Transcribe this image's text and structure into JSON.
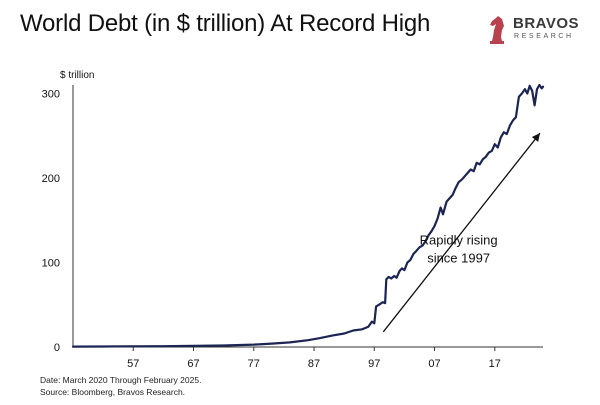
{
  "title": "World Debt (in $ trillion) At Record High",
  "logo": {
    "name": "BRAVOS",
    "tagline": "RESEARCH",
    "color": "#b8434f"
  },
  "footnotes": [
    "Date: March 2020 Through February 2025.",
    "Source: Bloomberg, Bravos Research."
  ],
  "chart_data": {
    "type": "line",
    "title": "World Debt (in $ trillion) At Record High",
    "xlabel": "",
    "ylabel": "$ trillion",
    "xlim": [
      1947,
      2025
    ],
    "ylim": [
      0,
      310
    ],
    "x_ticks": [
      1957,
      1967,
      1977,
      1987,
      1997,
      2007,
      2017
    ],
    "x_tick_labels": [
      "57",
      "67",
      "77",
      "87",
      "97",
      "07",
      "17"
    ],
    "y_ticks": [
      0,
      100,
      200,
      300
    ],
    "y_tick_labels": [
      "0",
      "100",
      "200",
      "300"
    ],
    "grid": false,
    "line_color": "#1b2452",
    "series": [
      {
        "values": [
          [
            1947,
            0.5
          ],
          [
            1952,
            0.6
          ],
          [
            1957,
            0.8
          ],
          [
            1962,
            1.0
          ],
          [
            1967,
            1.3
          ],
          [
            1972,
            1.8
          ],
          [
            1977,
            2.8
          ],
          [
            1980,
            4.0
          ],
          [
            1983,
            5.5
          ],
          [
            1986,
            8.0
          ],
          [
            1988,
            10.5
          ],
          [
            1990,
            13.5
          ],
          [
            1992,
            16.0
          ],
          [
            1993.5,
            19.5
          ],
          [
            1995,
            21.0
          ],
          [
            1996,
            24.0
          ],
          [
            1996.6,
            30.0
          ],
          [
            1997.0,
            28.0
          ],
          [
            1997.3,
            48.0
          ],
          [
            1997.8,
            50.0
          ],
          [
            1998.4,
            53.0
          ],
          [
            1998.8,
            52.0
          ],
          [
            1999.0,
            80.0
          ],
          [
            1999.4,
            83.0
          ],
          [
            1999.8,
            81.0
          ],
          [
            2000.3,
            84.0
          ],
          [
            2000.7,
            82.0
          ],
          [
            2001.2,
            90.0
          ],
          [
            2001.6,
            93.0
          ],
          [
            2002.0,
            91.0
          ],
          [
            2002.5,
            100.0
          ],
          [
            2003.0,
            103.0
          ],
          [
            2003.5,
            110.0
          ],
          [
            2004.0,
            114.0
          ],
          [
            2004.5,
            118.0
          ],
          [
            2005.0,
            120.0
          ],
          [
            2005.5,
            125.0
          ],
          [
            2006.0,
            132.0
          ],
          [
            2006.5,
            137.0
          ],
          [
            2007.0,
            143.0
          ],
          [
            2007.5,
            152.0
          ],
          [
            2008.0,
            165.0
          ],
          [
            2008.4,
            157.0
          ],
          [
            2009.0,
            172.0
          ],
          [
            2009.5,
            176.0
          ],
          [
            2010.0,
            180.0
          ],
          [
            2010.5,
            188.0
          ],
          [
            2011.0,
            195.0
          ],
          [
            2011.5,
            198.0
          ],
          [
            2012.0,
            202.0
          ],
          [
            2012.5,
            206.0
          ],
          [
            2013.0,
            210.0
          ],
          [
            2013.5,
            208.0
          ],
          [
            2014.0,
            218.0
          ],
          [
            2014.5,
            216.0
          ],
          [
            2015.0,
            222.0
          ],
          [
            2015.5,
            225.0
          ],
          [
            2016.0,
            230.0
          ],
          [
            2016.5,
            232.0
          ],
          [
            2017.0,
            240.0
          ],
          [
            2017.5,
            236.0
          ],
          [
            2018.0,
            248.0
          ],
          [
            2018.5,
            254.0
          ],
          [
            2019.0,
            252.0
          ],
          [
            2019.5,
            262.0
          ],
          [
            2020.0,
            268.0
          ],
          [
            2020.5,
            272.0
          ],
          [
            2021.0,
            296.0
          ],
          [
            2021.5,
            300.0
          ],
          [
            2022.0,
            305.0
          ],
          [
            2022.4,
            300.0
          ],
          [
            2022.8,
            309.0
          ],
          [
            2023.2,
            303.0
          ],
          [
            2023.6,
            286.0
          ],
          [
            2024.0,
            305.0
          ],
          [
            2024.4,
            310.0
          ],
          [
            2024.8,
            306.0
          ],
          [
            2025.0,
            308.0
          ]
        ]
      }
    ],
    "annotations": [
      {
        "text": "Rapidly rising",
        "x": 2011,
        "y": 121
      },
      {
        "text": "since 1997",
        "x": 2011,
        "y": 100
      }
    ],
    "arrow": {
      "from": [
        1998.5,
        18
      ],
      "to": [
        2024.5,
        253
      ]
    }
  }
}
